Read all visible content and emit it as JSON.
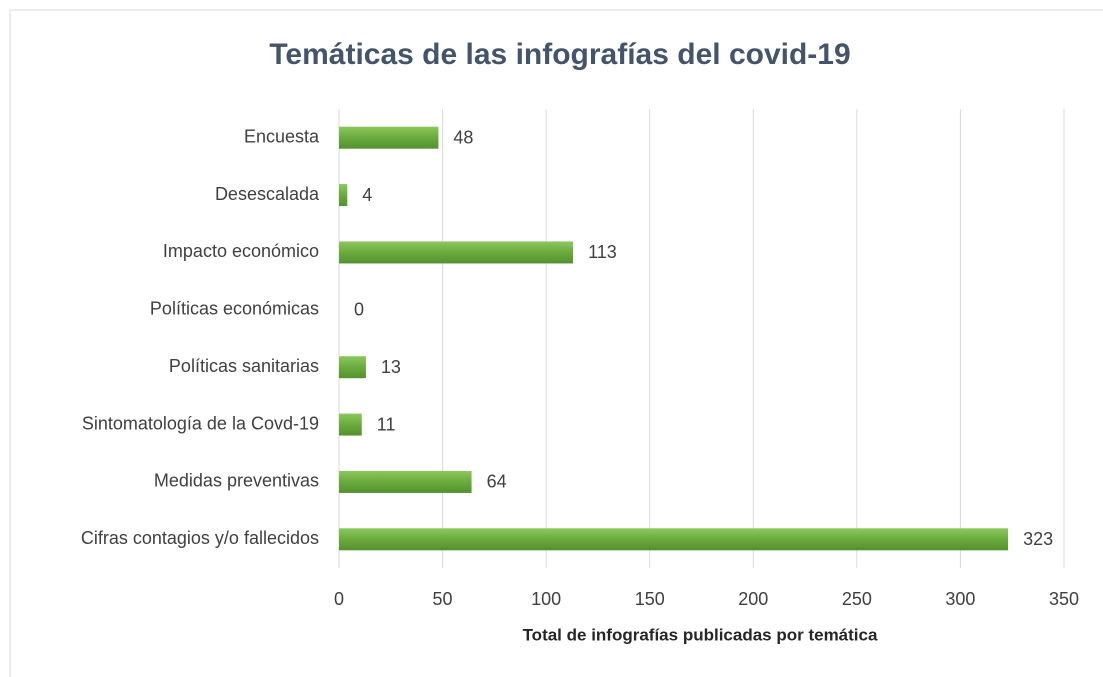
{
  "chart_data": {
    "type": "bar",
    "orientation": "horizontal",
    "title": "Temáticas de las infografías del covid-19",
    "x_label": "Total de infografías publicadas por temática",
    "categories": [
      "Encuesta",
      "Desescalada",
      "Impacto económico",
      "Políticas económicas",
      "Políticas sanitarias",
      "Sintomatología de la Covd-19",
      "Medidas preventivas",
      "Cifras contagios y/o fallecidos"
    ],
    "values": [
      48,
      4,
      113,
      0,
      13,
      11,
      64,
      323
    ],
    "color": "#6aab3c",
    "xlim": [
      0,
      350
    ],
    "xticks": [
      0,
      50,
      100,
      150,
      200,
      250,
      300,
      350
    ],
    "grid": true
  }
}
